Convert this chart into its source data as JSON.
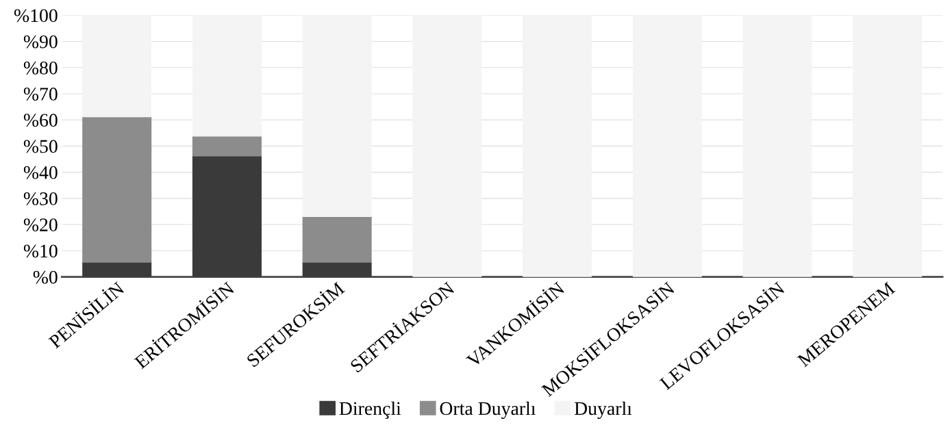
{
  "chart_data": {
    "type": "bar",
    "stacked": true,
    "categories": [
      "PENİSİLİN",
      "ERİTROMİSİN",
      "SEFUROKSİM",
      "SEFTRİAKSON",
      "VANKOMİSİN",
      "MOKSİFLOKSASİN",
      "LEVOFLOKSASİN",
      "MEROPENEM"
    ],
    "series": [
      {
        "name": "Dirençli",
        "color": "#3a3a3a",
        "values": [
          5.6,
          46.2,
          5.6,
          0,
          0,
          0,
          0,
          0
        ]
      },
      {
        "name": "Orta Duyarlı",
        "color": "#8c8c8c",
        "values": [
          55.6,
          7.6,
          17.5,
          0,
          0,
          0,
          0,
          0
        ]
      },
      {
        "name": "Duyarlı",
        "color": "#f4f4f4",
        "values": [
          38.8,
          46.2,
          76.9,
          100,
          100,
          100,
          100,
          100
        ]
      }
    ],
    "ylim": [
      0,
      100
    ],
    "yticks": [
      {
        "value": 0,
        "label": "%0"
      },
      {
        "value": 10,
        "label": "%10"
      },
      {
        "value": 20,
        "label": "%20"
      },
      {
        "value": 30,
        "label": "%30"
      },
      {
        "value": 40,
        "label": "%40"
      },
      {
        "value": 50,
        "label": "%50"
      },
      {
        "value": 60,
        "label": "%60"
      },
      {
        "value": 70,
        "label": "%70"
      },
      {
        "value": 80,
        "label": "%80"
      },
      {
        "value": 90,
        "label": "%90"
      },
      {
        "value": 100,
        "label": "%100"
      }
    ],
    "grid": "y",
    "legend": "bottom"
  }
}
